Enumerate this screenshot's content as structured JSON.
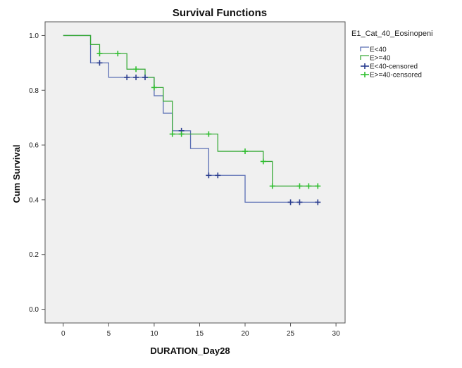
{
  "chart_data": {
    "type": "line",
    "title": "Survival Functions",
    "xlabel": "DURATION_Day28",
    "ylabel": "Cum Survival",
    "xlim": [
      -2,
      31
    ],
    "ylim": [
      -0.05,
      1.05
    ],
    "xticks": [
      0,
      5,
      10,
      15,
      20,
      25,
      30
    ],
    "yticks": [
      0.0,
      0.2,
      0.4,
      0.6,
      0.8,
      1.0
    ],
    "ytick_labels": [
      "0.0",
      "0.2",
      "0.4",
      "0.6",
      "0.8",
      "1.0"
    ],
    "legend_title": "E1_Cat_40_Eosinopeni",
    "legend_position": "right",
    "series": [
      {
        "name": "E<40",
        "color": "#5b6fb5",
        "censor_color": "#2a3d8f",
        "censor_label": "E<40-censored",
        "steps": [
          [
            0,
            1.0
          ],
          [
            3,
            0.9
          ],
          [
            5,
            0.847
          ],
          [
            10,
            0.78
          ],
          [
            11,
            0.716
          ],
          [
            12,
            0.652
          ],
          [
            14,
            0.587
          ],
          [
            16,
            0.489
          ],
          [
            20,
            0.391
          ]
        ],
        "end_x": 28,
        "censored": [
          [
            4,
            0.9
          ],
          [
            7,
            0.847
          ],
          [
            8,
            0.847
          ],
          [
            9,
            0.847
          ],
          [
            13,
            0.652
          ],
          [
            16,
            0.489
          ],
          [
            17,
            0.489
          ],
          [
            25,
            0.391
          ],
          [
            26,
            0.391
          ],
          [
            28,
            0.391
          ]
        ]
      },
      {
        "name": "E>=40",
        "color": "#3aaa3a",
        "censor_color": "#2fbf2f",
        "censor_label": "E>=40-censored",
        "steps": [
          [
            0,
            1.0
          ],
          [
            3,
            0.967
          ],
          [
            4,
            0.934
          ],
          [
            7,
            0.877
          ],
          [
            9,
            0.847
          ],
          [
            10,
            0.81
          ],
          [
            11,
            0.76
          ],
          [
            12,
            0.64
          ],
          [
            17,
            0.577
          ],
          [
            22,
            0.54
          ],
          [
            23,
            0.45
          ]
        ],
        "end_x": 28,
        "censored": [
          [
            4,
            0.934
          ],
          [
            6,
            0.934
          ],
          [
            8,
            0.877
          ],
          [
            10,
            0.81
          ],
          [
            12,
            0.64
          ],
          [
            13,
            0.64
          ],
          [
            16,
            0.64
          ],
          [
            20,
            0.577
          ],
          [
            22,
            0.54
          ],
          [
            23,
            0.45
          ],
          [
            26,
            0.45
          ],
          [
            27,
            0.45
          ],
          [
            28,
            0.45
          ]
        ]
      }
    ]
  }
}
